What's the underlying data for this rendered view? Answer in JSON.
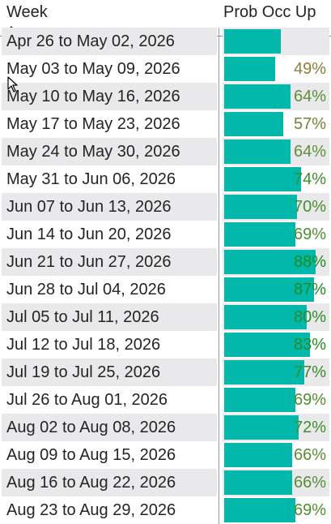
{
  "table": {
    "columns": {
      "week": "Week",
      "prob": "Prob Occ Up"
    },
    "sort": {
      "column": "week",
      "direction": "ascending"
    },
    "bar_color": "#01b8aa",
    "rows": [
      {
        "week": "Apr 26 to May 02, 2026",
        "pct_label": "",
        "value": 0.55,
        "color": "#6b8e23"
      },
      {
        "week": "May 03 to May 09, 2026",
        "pct_label": "49%",
        "value": 0.49,
        "color": "#8b7d3a"
      },
      {
        "week": "May 10 to May 16, 2026",
        "pct_label": "64%",
        "value": 0.64,
        "color": "#5f8f3a"
      },
      {
        "week": "May 17 to May 23, 2026",
        "pct_label": "57%",
        "value": 0.57,
        "color": "#77813a"
      },
      {
        "week": "May 24 to May 30, 2026",
        "pct_label": "64%",
        "value": 0.64,
        "color": "#5f8f3a"
      },
      {
        "week": "May 31 to Jun 06, 2026",
        "pct_label": "74%",
        "value": 0.74,
        "color": "#3d8c2e"
      },
      {
        "week": "Jun 07 to Jun 13, 2026",
        "pct_label": "70%",
        "value": 0.7,
        "color": "#4a8f30"
      },
      {
        "week": "Jun 14 to Jun 20, 2026",
        "pct_label": "69%",
        "value": 0.69,
        "color": "#4f8f32"
      },
      {
        "week": "Jun 21 to Jun 27, 2026",
        "pct_label": "88%",
        "value": 0.88,
        "color": "#1f8a22"
      },
      {
        "week": "Jun 28 to Jul 04, 2026",
        "pct_label": "87%",
        "value": 0.87,
        "color": "#228a24"
      },
      {
        "week": "Jul 05 to Jul 11, 2026",
        "pct_label": "80%",
        "value": 0.8,
        "color": "#2f8c28"
      },
      {
        "week": "Jul 12 to Jul 18, 2026",
        "pct_label": "83%",
        "value": 0.83,
        "color": "#298b26"
      },
      {
        "week": "Jul 19 to Jul 25, 2026",
        "pct_label": "77%",
        "value": 0.77,
        "color": "#378c2b"
      },
      {
        "week": "Jul 26 to Aug 01, 2026",
        "pct_label": "69%",
        "value": 0.69,
        "color": "#4f8f32"
      },
      {
        "week": "Aug 02 to Aug 08, 2026",
        "pct_label": "72%",
        "value": 0.72,
        "color": "#438e2f"
      },
      {
        "week": "Aug 09 to Aug 15, 2026",
        "pct_label": "66%",
        "value": 0.66,
        "color": "#588f36"
      },
      {
        "week": "Aug 16 to Aug 22, 2026",
        "pct_label": "66%",
        "value": 0.66,
        "color": "#588f36"
      },
      {
        "week": "Aug 23 to Aug 29, 2026",
        "pct_label": "69%",
        "value": 0.69,
        "color": "#4f8f32"
      }
    ]
  },
  "cursor": {
    "icon": "mouse-pointer-icon"
  }
}
